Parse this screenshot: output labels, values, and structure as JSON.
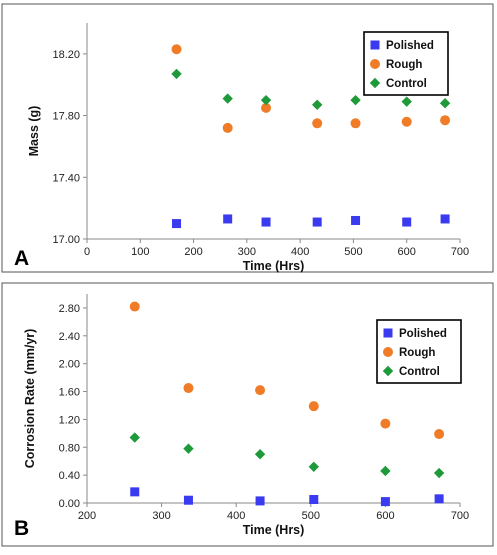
{
  "colors": {
    "polished": "#3a3af0",
    "rough": "#f07c28",
    "control": "#1f9a3a",
    "frame": "#555555",
    "axis": "#8a8a8a"
  },
  "chart_data": [
    {
      "type": "scatter",
      "panel_label": "A",
      "xlabel": "Time (Hrs)",
      "ylabel": "Mass (g)",
      "xlim": [
        0,
        700
      ],
      "ylim": [
        17.0,
        18.4
      ],
      "xticks": [
        0,
        100,
        200,
        300,
        400,
        500,
        600,
        700
      ],
      "xtick_labels": [
        "0",
        "100",
        "200",
        "300",
        "400",
        "500",
        "600",
        "700"
      ],
      "yticks": [
        17.0,
        17.4,
        17.8,
        18.2
      ],
      "ytick_labels": [
        "17.00",
        "17.40",
        "17.80",
        "18.20"
      ],
      "grid": false,
      "legend_position": "top-right",
      "series": [
        {
          "name": "Polished",
          "marker": "square",
          "color_key": "polished",
          "x": [
            168,
            264,
            336,
            432,
            504,
            600,
            672
          ],
          "y": [
            17.1,
            17.13,
            17.11,
            17.11,
            17.12,
            17.11,
            17.13
          ]
        },
        {
          "name": "Rough",
          "marker": "circle",
          "color_key": "rough",
          "x": [
            168,
            264,
            336,
            432,
            504,
            600,
            672
          ],
          "y": [
            18.23,
            17.72,
            17.85,
            17.75,
            17.75,
            17.76,
            17.77
          ]
        },
        {
          "name": "Control",
          "marker": "diamond",
          "color_key": "control",
          "x": [
            168,
            264,
            336,
            432,
            504,
            600,
            672
          ],
          "y": [
            18.07,
            17.91,
            17.9,
            17.87,
            17.9,
            17.89,
            17.88
          ]
        }
      ]
    },
    {
      "type": "scatter",
      "panel_label": "B",
      "xlabel": "Time (Hrs)",
      "ylabel": "Corrosion Rate (mm/yr)",
      "xlim": [
        200,
        700
      ],
      "ylim": [
        0,
        3.0
      ],
      "xticks": [
        200,
        300,
        400,
        500,
        600,
        700
      ],
      "xtick_labels": [
        "200",
        "300",
        "400",
        "500",
        "600",
        "700"
      ],
      "yticks": [
        0,
        0.4,
        0.8,
        1.2,
        1.6,
        2.0,
        2.4,
        2.8
      ],
      "ytick_labels": [
        "0.00",
        "0.40",
        "0.80",
        "1.20",
        "1.60",
        "2.00",
        "2.40",
        "2.80"
      ],
      "grid": false,
      "legend_position": "top-right",
      "series": [
        {
          "name": "Polished",
          "marker": "square",
          "color_key": "polished",
          "x": [
            264,
            336,
            432,
            504,
            600,
            672
          ],
          "y": [
            0.16,
            0.04,
            0.03,
            0.05,
            0.02,
            0.06
          ]
        },
        {
          "name": "Rough",
          "marker": "circle",
          "color_key": "rough",
          "x": [
            264,
            336,
            432,
            504,
            600,
            672
          ],
          "y": [
            2.82,
            1.65,
            1.62,
            1.39,
            1.14,
            0.99
          ]
        },
        {
          "name": "Control",
          "marker": "diamond",
          "color_key": "control",
          "x": [
            264,
            336,
            432,
            504,
            600,
            672
          ],
          "y": [
            0.94,
            0.78,
            0.7,
            0.52,
            0.46,
            0.43
          ]
        }
      ]
    }
  ]
}
